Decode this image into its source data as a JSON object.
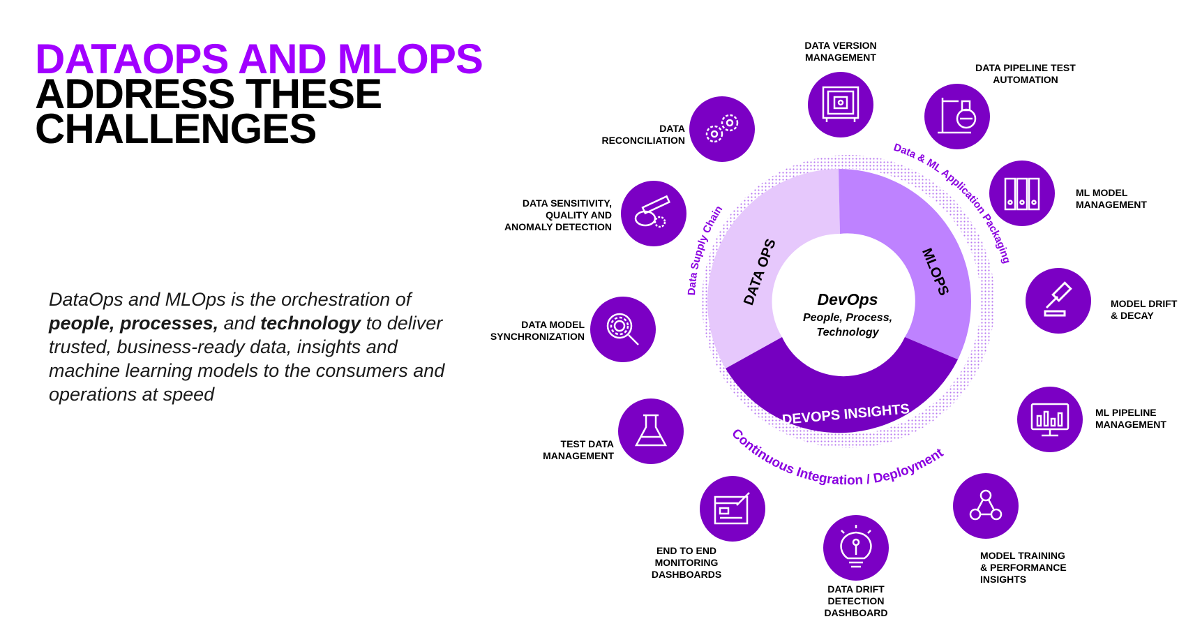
{
  "title": {
    "line1": "DATAOPS AND MLOPS",
    "line2": "ADDRESS THESE",
    "line3": "CHALLENGES"
  },
  "description": {
    "part1": "DataOps and MLOps is the orchestration of ",
    "bold1": "people, processes,",
    "part2": " and ",
    "bold2": "technology",
    "part3": " to deliver trusted, business-ready data, insights and machine learning models to the consumers  and operations at speed"
  },
  "center": {
    "title": "DevOps",
    "line1": "People, Process,",
    "line2": "Technology"
  },
  "segments": {
    "dataops": "DATA OPS",
    "mlops": "MLOPS",
    "devops_insights": "DEVOPS INSIGHTS"
  },
  "arcs": {
    "supply_chain": "Data Supply Chain",
    "packaging": "Data & ML Application Packaging",
    "cicd": "Continuous Integration / Deployment"
  },
  "nodes": {
    "data_version": [
      "DATA VERSION",
      "MANAGEMENT"
    ],
    "pipeline_test": [
      "DATA PIPELINE TEST",
      "AUTOMATION"
    ],
    "ml_model": [
      "ML MODEL",
      "MANAGEMENT"
    ],
    "model_drift": [
      "MODEL DRIFT",
      "& DECAY"
    ],
    "ml_pipeline": [
      "ML PIPELINE",
      "MANAGEMENT"
    ],
    "model_training": [
      "MODEL TRAINING",
      "& PERFORMANCE",
      "INSIGHTS"
    ],
    "data_drift": [
      "DATA DRIFT",
      "DETECTION",
      "DASHBOARD"
    ],
    "end_to_end": [
      "END TO END",
      "MONITORING",
      "DASHBOARDS"
    ],
    "test_data": [
      "TEST DATA",
      "MANAGEMENT"
    ],
    "data_model_sync": [
      "DATA MODEL",
      "SYNCHRONIZATION"
    ],
    "data_sensitivity": [
      "DATA SENSITIVITY,",
      "QUALITY AND",
      "ANOMALY DETECTION"
    ],
    "data_reconciliation": [
      "DATA",
      "RECONCILIATION"
    ]
  },
  "icons": {
    "data_version": "safe-icon",
    "pipeline_test": "lab-stand-icon",
    "ml_model": "binders-icon",
    "model_drift": "gavel-icon",
    "ml_pipeline": "monitor-chart-icon",
    "model_training": "network-people-icon",
    "data_drift": "lightbulb-person-icon",
    "end_to_end": "dashboard-edit-icon",
    "test_data": "flask-icon",
    "data_model_sync": "gear-search-icon",
    "data_sensitivity": "test-tubes-gear-icon",
    "data_reconciliation": "gears-icon"
  },
  "colors": {
    "purple": "#a100ff",
    "dark_purple": "#7500c0",
    "light_purple": "#e6c8fc",
    "mid_purple": "#be82ff",
    "node_purple": "#7b00c4",
    "text": "#000000"
  }
}
